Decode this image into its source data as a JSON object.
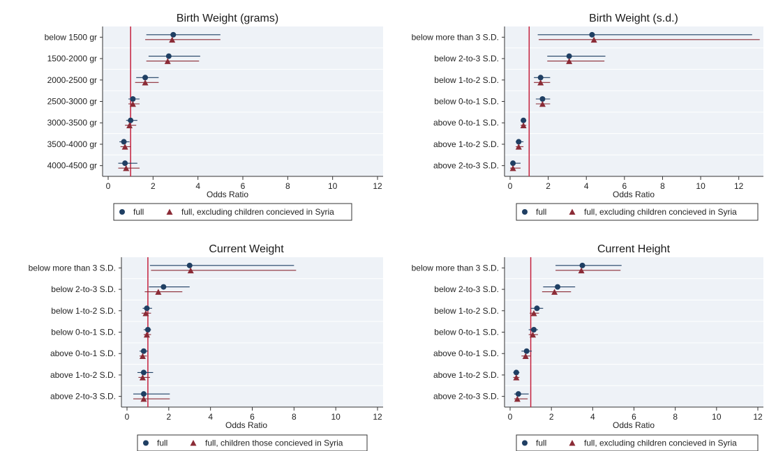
{
  "colors": {
    "full": "#1f3f63",
    "excl": "#8b2b36",
    "refline": "#c5203c",
    "panel_bg": "#eef2f7",
    "grid": "#ffffff"
  },
  "chart_data": [
    {
      "type": "scatter",
      "title": "Birth Weight (grams)",
      "xlabel": "Odds Ratio",
      "xlim": [
        0,
        12
      ],
      "xticks": [
        0,
        2,
        4,
        6,
        8,
        10,
        12
      ],
      "reference_line": 1,
      "categories": [
        "below 1500 gr",
        "1500-2000 gr",
        "2000-2500 gr",
        "2500-3000 gr",
        "3000-3500 gr",
        "3500-4000 gr",
        "4000-4500 gr"
      ],
      "series": [
        {
          "name": "full",
          "marker": "circle",
          "points": [
            2.9,
            2.7,
            1.65,
            1.1,
            1.0,
            0.7,
            0.75
          ],
          "lo": [
            1.7,
            1.8,
            1.25,
            0.9,
            0.8,
            0.5,
            0.45
          ],
          "hi": [
            5.0,
            4.1,
            2.25,
            1.4,
            1.3,
            0.95,
            1.3
          ]
        },
        {
          "name": "full, excluding children concieved in Syria",
          "marker": "triangle",
          "points": [
            2.85,
            2.65,
            1.65,
            1.1,
            0.95,
            0.75,
            0.8
          ],
          "lo": [
            1.65,
            1.7,
            1.2,
            0.9,
            0.75,
            0.55,
            0.45
          ],
          "hi": [
            5.0,
            4.05,
            2.25,
            1.4,
            1.25,
            1.0,
            1.4
          ]
        }
      ],
      "legend": [
        "full",
        "full, excluding children concieved in Syria"
      ]
    },
    {
      "type": "scatter",
      "title": "Birth Weight (s.d.)",
      "xlabel": "Odds Ratio",
      "xlim": [
        0,
        13
      ],
      "xticks": [
        0,
        2,
        4,
        6,
        8,
        10,
        12
      ],
      "reference_line": 1,
      "categories": [
        "below more than 3 S.D.",
        "below 2-to-3 S.D.",
        "below 1-to-2 S.D.",
        "below 0-to-1 S.D.",
        "above 0-to-1 S.D.",
        "above 1-to-2 S.D.",
        "above 2-to-3 S.D."
      ],
      "series": [
        {
          "name": "full",
          "marker": "circle",
          "points": [
            4.3,
            3.1,
            1.6,
            1.7,
            0.7,
            0.45,
            0.15
          ],
          "lo": [
            1.45,
            1.95,
            1.25,
            1.35,
            0.55,
            0.3,
            0.0
          ],
          "hi": [
            12.7,
            5.0,
            2.1,
            2.1,
            0.85,
            0.7,
            0.55
          ]
        },
        {
          "name": "full, excluding children concieved in Syria",
          "marker": "triangle",
          "points": [
            4.4,
            3.1,
            1.6,
            1.7,
            0.7,
            0.45,
            0.15
          ],
          "lo": [
            1.5,
            1.95,
            1.25,
            1.35,
            0.55,
            0.3,
            0.0
          ],
          "hi": [
            13.1,
            4.95,
            2.1,
            2.1,
            0.85,
            0.7,
            0.55
          ]
        }
      ],
      "legend": [
        "full",
        "full, excluding children concieved in Syria"
      ]
    },
    {
      "type": "scatter",
      "title": "Current Weight",
      "xlabel": "Odds Ratio",
      "xlim": [
        0,
        12
      ],
      "xticks": [
        0,
        2,
        4,
        6,
        8,
        10,
        12
      ],
      "reference_line": 1,
      "categories": [
        "below more than 3 S.D.",
        "below 2-to-3 S.D.",
        "below 1-to-2 S.D.",
        "below 0-to-1 S.D.",
        "above 0-to-1 S.D.",
        "above 1-to-2 S.D.",
        "above 2-to-3 S.D."
      ],
      "series": [
        {
          "name": "full",
          "marker": "circle",
          "points": [
            3.0,
            1.75,
            0.95,
            1.0,
            0.8,
            0.8,
            0.8
          ],
          "lo": [
            1.1,
            1.05,
            0.75,
            0.8,
            0.6,
            0.5,
            0.3
          ],
          "hi": [
            8.0,
            3.0,
            1.2,
            1.15,
            1.0,
            1.25,
            2.05
          ]
        },
        {
          "name": "full, children those concieved in Syria",
          "marker": "triangle",
          "points": [
            3.05,
            1.5,
            0.9,
            0.95,
            0.75,
            0.75,
            0.8
          ],
          "lo": [
            1.15,
            0.85,
            0.7,
            0.8,
            0.6,
            0.55,
            0.3
          ],
          "hi": [
            8.1,
            2.65,
            1.15,
            1.15,
            0.95,
            1.1,
            2.05
          ]
        }
      ],
      "legend": [
        "full",
        "full, children those concieved in Syria"
      ]
    },
    {
      "type": "scatter",
      "title": "Current Height",
      "xlabel": "Odds Ratio",
      "xlim": [
        0,
        12
      ],
      "xticks": [
        0,
        2,
        4,
        6,
        8,
        10,
        12
      ],
      "reference_line": 1,
      "categories": [
        "below more than 3 S.D.",
        "below 2-to-3 S.D.",
        "below 1-to-2 S.D.",
        "below 0-to-1 S.D.",
        "above 0-to-1 S.D.",
        "above 1-to-2 S.D.",
        "above 2-to-3 S.D."
      ],
      "series": [
        {
          "name": "full",
          "marker": "circle",
          "points": [
            3.5,
            2.3,
            1.3,
            1.15,
            0.8,
            0.3,
            0.4
          ],
          "lo": [
            2.2,
            1.6,
            1.0,
            0.9,
            0.55,
            0.15,
            0.2
          ],
          "hi": [
            5.4,
            3.15,
            1.6,
            1.35,
            1.05,
            0.45,
            0.9
          ]
        },
        {
          "name": "full, excluding children concieved in Syria",
          "marker": "triangle",
          "points": [
            3.45,
            2.15,
            1.15,
            1.1,
            0.75,
            0.3,
            0.35
          ],
          "lo": [
            2.2,
            1.55,
            0.95,
            0.9,
            0.55,
            0.15,
            0.2
          ],
          "hi": [
            5.35,
            2.95,
            1.4,
            1.35,
            1.0,
            0.45,
            0.85
          ]
        }
      ],
      "legend": [
        "full",
        "full, excluding children concieved in Syria"
      ]
    }
  ]
}
